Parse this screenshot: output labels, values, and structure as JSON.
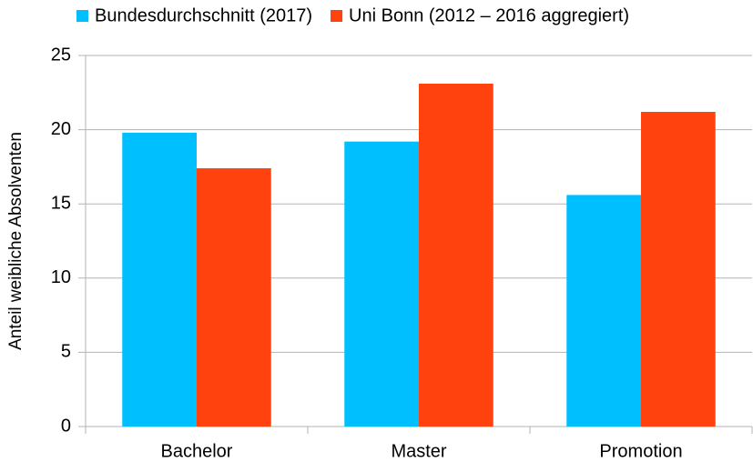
{
  "chart_data": {
    "type": "bar",
    "y_label": "Anteil weibliche Absolventen",
    "categories": [
      "Bachelor",
      "Master",
      "Promotion"
    ],
    "series": [
      {
        "name": "Bundesdurchschnitt (2017)",
        "color": "#00bfff",
        "values": [
          19.8,
          19.2,
          15.6
        ]
      },
      {
        "name": "Uni Bonn (2012 – 2016 aggregiert)",
        "color": "#ff420e",
        "values": [
          17.4,
          23.1,
          21.2
        ]
      }
    ],
    "ylim": [
      0,
      25
    ],
    "yticks": [
      0,
      5,
      10,
      15,
      20,
      25
    ],
    "grid": true,
    "legend": "top"
  }
}
